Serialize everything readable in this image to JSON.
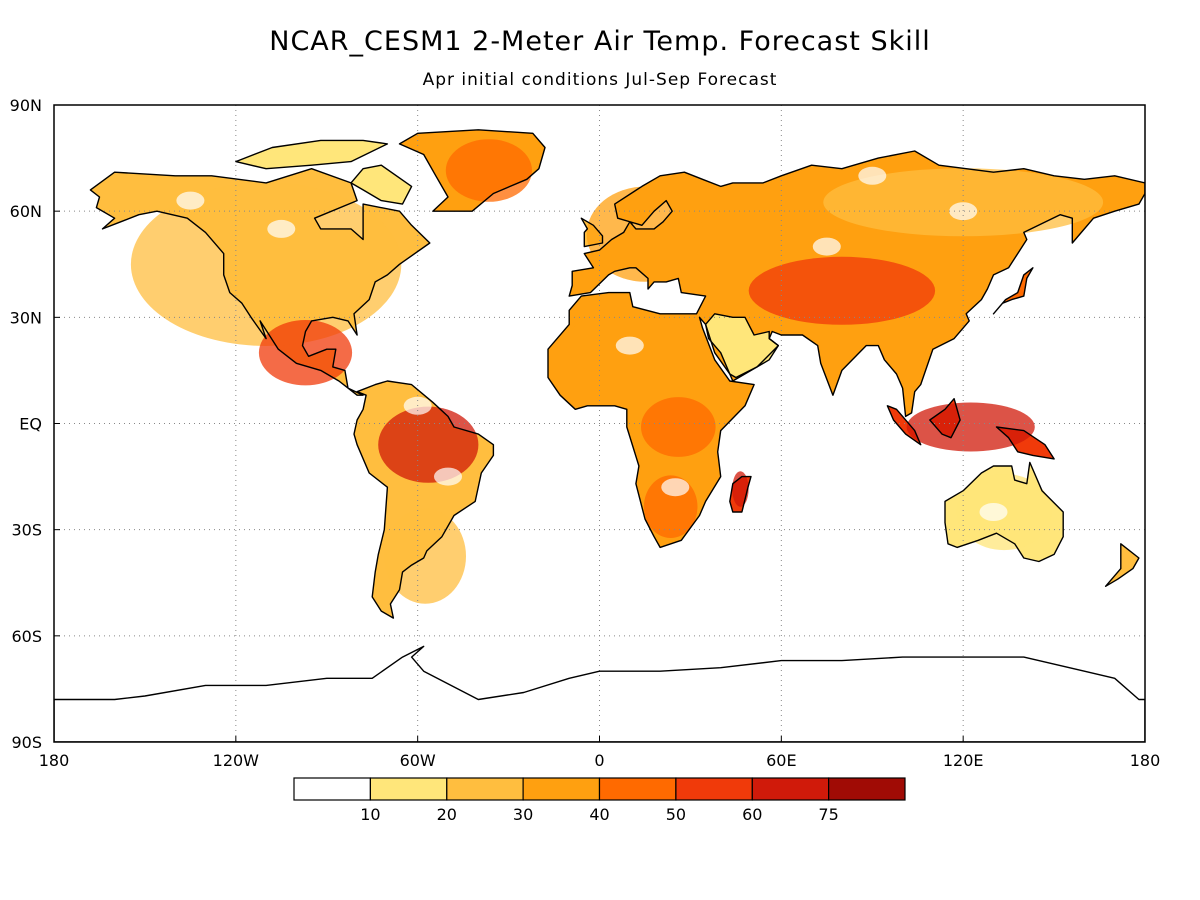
{
  "title": "NCAR_CESM1 2-Meter Air Temp. Forecast Skill",
  "subtitle": "Apr initial conditions  Jul-Sep Forecast",
  "chart_data": {
    "type": "heatmap",
    "title": "NCAR_CESM1 2-Meter Air Temp. Forecast Skill",
    "subtitle": "Apr initial conditions  Jul-Sep Forecast",
    "x_ticks": [
      {
        "value": -180,
        "label": "180"
      },
      {
        "value": -120,
        "label": "120W"
      },
      {
        "value": -60,
        "label": "60W"
      },
      {
        "value": 0,
        "label": "0"
      },
      {
        "value": 60,
        "label": "60E"
      },
      {
        "value": 120,
        "label": "120E"
      },
      {
        "value": 180,
        "label": "180"
      }
    ],
    "y_ticks": [
      {
        "value": 90,
        "label": "90N"
      },
      {
        "value": 60,
        "label": "60N"
      },
      {
        "value": 30,
        "label": "30N"
      },
      {
        "value": 0,
        "label": "EQ"
      },
      {
        "value": -30,
        "label": "30S"
      },
      {
        "value": -60,
        "label": "60S"
      },
      {
        "value": -90,
        "label": "90S"
      }
    ],
    "xlim": [
      -180,
      180
    ],
    "ylim": [
      -90,
      90
    ],
    "grid": true,
    "colorbar": {
      "boundaries": [
        "10",
        "20",
        "30",
        "40",
        "50",
        "60",
        "75"
      ],
      "colors": [
        "#ffffff",
        "#ffe67a",
        "#ffbe3f",
        "#ffa010",
        "#ff6a00",
        "#f03a0a",
        "#d01a0a",
        "#a00b05"
      ]
    },
    "regions": [
      {
        "name": "north-america",
        "lon_range": [
          -168,
          -52
        ],
        "lat_range": [
          15,
          75
        ],
        "skill_level": 2
      },
      {
        "name": "greenland",
        "lon_range": [
          -55,
          -18
        ],
        "lat_range": [
          60,
          83
        ],
        "skill_level": 4
      },
      {
        "name": "central-america",
        "lon_range": [
          -117,
          -77
        ],
        "lat_range": [
          8,
          32
        ],
        "skill_level": 5
      },
      {
        "name": "amazon",
        "lon_range": [
          -78,
          -35
        ],
        "lat_range": [
          -20,
          8
        ],
        "skill_level": 6
      },
      {
        "name": "southern-south-america",
        "lon_range": [
          -75,
          -40
        ],
        "lat_range": [
          -55,
          -20
        ],
        "skill_level": 2
      },
      {
        "name": "europe",
        "lon_range": [
          -10,
          40
        ],
        "lat_range": [
          36,
          71
        ],
        "skill_level": 3
      },
      {
        "name": "sahara",
        "lon_range": [
          -17,
          35
        ],
        "lat_range": [
          10,
          35
        ],
        "skill_level": 3
      },
      {
        "name": "central-africa",
        "lon_range": [
          10,
          42
        ],
        "lat_range": [
          -12,
          10
        ],
        "skill_level": 4
      },
      {
        "name": "southern-africa",
        "lon_range": [
          12,
          35
        ],
        "lat_range": [
          -35,
          -12
        ],
        "skill_level": 4
      },
      {
        "name": "madagascar",
        "lon_range": [
          43,
          50
        ],
        "lat_range": [
          -25,
          -12
        ],
        "skill_level": 6
      },
      {
        "name": "siberia",
        "lon_range": [
          60,
          180
        ],
        "lat_range": [
          50,
          75
        ],
        "skill_level": 2
      },
      {
        "name": "central-asia",
        "lon_range": [
          40,
          120
        ],
        "lat_range": [
          25,
          50
        ],
        "skill_level": 5
      },
      {
        "name": "maritime-continent",
        "lon_range": [
          95,
          150
        ],
        "lat_range": [
          -10,
          8
        ],
        "skill_level": 6
      },
      {
        "name": "australia",
        "lon_range": [
          113,
          154
        ],
        "lat_range": [
          -39,
          -11
        ],
        "skill_level": 1
      },
      {
        "name": "antarctica",
        "lon_range": [
          -180,
          180
        ],
        "lat_range": [
          -90,
          -65
        ],
        "skill_level": 0
      }
    ]
  }
}
